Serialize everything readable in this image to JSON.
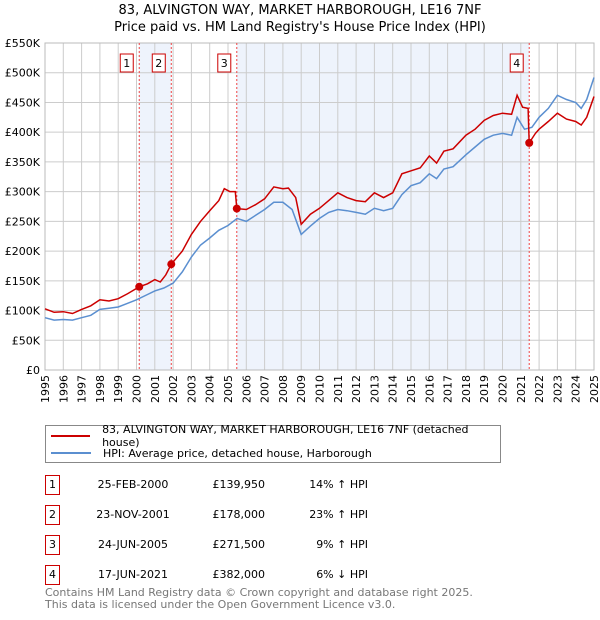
{
  "header": {
    "title": "83, ALVINGTON WAY, MARKET HARBOROUGH, LE16 7NF",
    "subtitle": "Price paid vs. HM Land Registry's House Price Index (HPI)"
  },
  "chart_data": {
    "type": "line",
    "title": "83, ALVINGTON WAY, MARKET HARBOROUGH, LE16 7NF — Price paid vs. HM Land Registry's House Price Index (HPI)",
    "xlim": [
      1995,
      2025
    ],
    "ylim": [
      0,
      550000
    ],
    "x_ticks": [
      "1995",
      "1996",
      "1997",
      "1998",
      "1999",
      "2000",
      "2001",
      "2002",
      "2003",
      "2004",
      "2005",
      "2006",
      "2007",
      "2008",
      "2009",
      "2010",
      "2011",
      "2012",
      "2013",
      "2014",
      "2015",
      "2016",
      "2017",
      "2018",
      "2019",
      "2020",
      "2021",
      "2022",
      "2023",
      "2024",
      "2025"
    ],
    "y_ticks": [
      "£0",
      "£50K",
      "£100K",
      "£150K",
      "£200K",
      "£250K",
      "£300K",
      "£350K",
      "£400K",
      "£450K",
      "£500K",
      "£550K"
    ],
    "grid": true,
    "colors": {
      "property": "#cc0000",
      "hpi": "#5b8fd0",
      "shade": "#eef3fc"
    },
    "series": [
      {
        "name": "83, ALVINGTON WAY, MARKET HARBOROUGH, LE16 7NF (detached house)",
        "points": [
          [
            1995,
            103000
          ],
          [
            1995.5,
            97000
          ],
          [
            1996,
            98000
          ],
          [
            1996.5,
            95000
          ],
          [
            1997,
            102000
          ],
          [
            1997.5,
            108000
          ],
          [
            1998,
            118000
          ],
          [
            1998.5,
            116000
          ],
          [
            1999,
            120000
          ],
          [
            1999.5,
            128000
          ],
          [
            2000.15,
            139950
          ],
          [
            2000.6,
            145000
          ],
          [
            2001,
            152000
          ],
          [
            2001.3,
            148000
          ],
          [
            2001.6,
            160000
          ],
          [
            2001.9,
            178000
          ],
          [
            2002.5,
            200000
          ],
          [
            2003,
            228000
          ],
          [
            2003.5,
            250000
          ],
          [
            2004,
            268000
          ],
          [
            2004.5,
            285000
          ],
          [
            2004.8,
            305000
          ],
          [
            2005.1,
            300000
          ],
          [
            2005.4,
            300000
          ],
          [
            2005.48,
            271500
          ],
          [
            2006,
            270000
          ],
          [
            2006.5,
            278000
          ],
          [
            2007,
            288000
          ],
          [
            2007.5,
            308000
          ],
          [
            2008,
            305000
          ],
          [
            2008.3,
            306000
          ],
          [
            2008.7,
            290000
          ],
          [
            2009,
            245000
          ],
          [
            2009.5,
            262000
          ],
          [
            2010,
            272000
          ],
          [
            2010.5,
            285000
          ],
          [
            2011,
            298000
          ],
          [
            2011.5,
            290000
          ],
          [
            2012,
            285000
          ],
          [
            2012.5,
            283000
          ],
          [
            2013,
            298000
          ],
          [
            2013.5,
            290000
          ],
          [
            2014,
            298000
          ],
          [
            2014.5,
            330000
          ],
          [
            2015,
            335000
          ],
          [
            2015.5,
            340000
          ],
          [
            2016,
            360000
          ],
          [
            2016.4,
            348000
          ],
          [
            2016.8,
            368000
          ],
          [
            2017.3,
            372000
          ],
          [
            2018,
            395000
          ],
          [
            2018.5,
            405000
          ],
          [
            2019,
            420000
          ],
          [
            2019.5,
            428000
          ],
          [
            2020,
            432000
          ],
          [
            2020.5,
            430000
          ],
          [
            2020.8,
            462000
          ],
          [
            2021.1,
            442000
          ],
          [
            2021.4,
            440000
          ],
          [
            2021.46,
            382000
          ],
          [
            2021.8,
            398000
          ],
          [
            2022,
            405000
          ],
          [
            2022.5,
            418000
          ],
          [
            2023,
            432000
          ],
          [
            2023.5,
            422000
          ],
          [
            2024,
            418000
          ],
          [
            2024.3,
            412000
          ],
          [
            2024.6,
            425000
          ],
          [
            2025,
            460000
          ]
        ]
      },
      {
        "name": "HPI: Average price, detached house, Harborough",
        "points": [
          [
            1995,
            88000
          ],
          [
            1995.5,
            84000
          ],
          [
            1996,
            85000
          ],
          [
            1996.5,
            84000
          ],
          [
            1997,
            88000
          ],
          [
            1997.5,
            92000
          ],
          [
            1998,
            102000
          ],
          [
            1998.5,
            104000
          ],
          [
            1999,
            106000
          ],
          [
            1999.5,
            112000
          ],
          [
            2000,
            118000
          ],
          [
            2000.6,
            127000
          ],
          [
            2001,
            133000
          ],
          [
            2001.5,
            138000
          ],
          [
            2002,
            146000
          ],
          [
            2002.5,
            165000
          ],
          [
            2003,
            190000
          ],
          [
            2003.5,
            210000
          ],
          [
            2004,
            222000
          ],
          [
            2004.5,
            235000
          ],
          [
            2005,
            243000
          ],
          [
            2005.5,
            255000
          ],
          [
            2006,
            250000
          ],
          [
            2006.5,
            260000
          ],
          [
            2007,
            270000
          ],
          [
            2007.5,
            282000
          ],
          [
            2008,
            282000
          ],
          [
            2008.5,
            270000
          ],
          [
            2009,
            228000
          ],
          [
            2009.5,
            242000
          ],
          [
            2010,
            255000
          ],
          [
            2010.5,
            265000
          ],
          [
            2011,
            270000
          ],
          [
            2011.5,
            268000
          ],
          [
            2012,
            265000
          ],
          [
            2012.5,
            262000
          ],
          [
            2013,
            272000
          ],
          [
            2013.5,
            268000
          ],
          [
            2014,
            272000
          ],
          [
            2014.5,
            295000
          ],
          [
            2015,
            310000
          ],
          [
            2015.5,
            315000
          ],
          [
            2016,
            330000
          ],
          [
            2016.4,
            322000
          ],
          [
            2016.8,
            338000
          ],
          [
            2017.3,
            342000
          ],
          [
            2018,
            362000
          ],
          [
            2018.5,
            375000
          ],
          [
            2019,
            388000
          ],
          [
            2019.5,
            395000
          ],
          [
            2020,
            398000
          ],
          [
            2020.5,
            395000
          ],
          [
            2020.8,
            425000
          ],
          [
            2021.2,
            405000
          ],
          [
            2021.6,
            408000
          ],
          [
            2022,
            425000
          ],
          [
            2022.5,
            440000
          ],
          [
            2023,
            462000
          ],
          [
            2023.5,
            455000
          ],
          [
            2024,
            450000
          ],
          [
            2024.3,
            440000
          ],
          [
            2024.6,
            455000
          ],
          [
            2025,
            492000
          ]
        ]
      }
    ],
    "sales": [
      {
        "n": "1",
        "x": 2000.15,
        "price": 139950
      },
      {
        "n": "2",
        "x": 2001.9,
        "price": 178000
      },
      {
        "n": "3",
        "x": 2005.48,
        "price": 271500
      },
      {
        "n": "4",
        "x": 2021.46,
        "price": 382000
      }
    ],
    "shaded_ranges": [
      [
        2000.15,
        2001.9
      ],
      [
        2005.48,
        2021.46
      ]
    ]
  },
  "legend": {
    "property": "83, ALVINGTON WAY, MARKET HARBOROUGH, LE16 7NF (detached house)",
    "hpi": "HPI: Average price, detached house, Harborough"
  },
  "transactions": [
    {
      "n": "1",
      "date": "25-FEB-2000",
      "price": "£139,950",
      "hpi": "14% ↑ HPI"
    },
    {
      "n": "2",
      "date": "23-NOV-2001",
      "price": "£178,000",
      "hpi": "23% ↑ HPI"
    },
    {
      "n": "3",
      "date": "24-JUN-2005",
      "price": "£271,500",
      "hpi": "9% ↑ HPI"
    },
    {
      "n": "4",
      "date": "17-JUN-2021",
      "price": "£382,000",
      "hpi": "6% ↓ HPI"
    }
  ],
  "footer": {
    "line1": "Contains HM Land Registry data © Crown copyright and database right 2025.",
    "line2": "This data is licensed under the Open Government Licence v3.0."
  }
}
